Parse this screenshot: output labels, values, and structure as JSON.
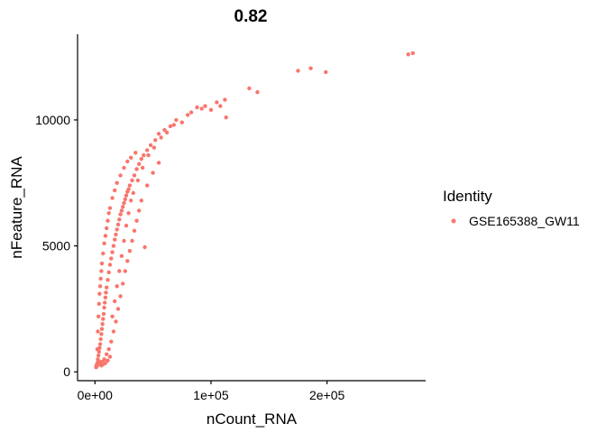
{
  "chart_data": {
    "type": "scatter",
    "title": "0.82",
    "xlabel": "nCount_RNA",
    "ylabel": "nFeature_RNA",
    "xlim": [
      -15000,
      285000
    ],
    "ylim": [
      -350,
      13400
    ],
    "x_ticks": [
      {
        "value": 0,
        "label": "0e+00"
      },
      {
        "value": 100000,
        "label": "1e+05"
      },
      {
        "value": 200000,
        "label": "2e+05"
      }
    ],
    "y_ticks": [
      {
        "value": 0,
        "label": "0"
      },
      {
        "value": 5000,
        "label": "5000"
      },
      {
        "value": 10000,
        "label": "10000"
      }
    ],
    "grid": false,
    "legend": {
      "title": "Identity",
      "position": "right",
      "entries": [
        {
          "label": "GSE165388_GW11",
          "color": "#F8766D"
        }
      ]
    },
    "series": [
      {
        "name": "GSE165388_GW11",
        "color": "#F8766D",
        "points": [
          [
            1500,
            200
          ],
          [
            2000,
            350
          ],
          [
            2500,
            500
          ],
          [
            3000,
            650
          ],
          [
            3500,
            800
          ],
          [
            4000,
            950
          ],
          [
            4500,
            1100
          ],
          [
            5000,
            1300
          ],
          [
            5500,
            1500
          ],
          [
            6000,
            1700
          ],
          [
            6500,
            1900
          ],
          [
            7000,
            2100
          ],
          [
            7500,
            2300
          ],
          [
            8000,
            2550
          ],
          [
            8500,
            2750
          ],
          [
            9000,
            2950
          ],
          [
            9500,
            3150
          ],
          [
            10000,
            3350
          ],
          [
            11000,
            3650
          ],
          [
            12000,
            3950
          ],
          [
            13000,
            4250
          ],
          [
            14000,
            4500
          ],
          [
            15000,
            4750
          ],
          [
            16000,
            5000
          ],
          [
            17000,
            5250
          ],
          [
            18000,
            5450
          ],
          [
            19000,
            5650
          ],
          [
            20000,
            5850
          ],
          [
            21000,
            6050
          ],
          [
            22000,
            6250
          ],
          [
            23000,
            6400
          ],
          [
            24000,
            6550
          ],
          [
            25000,
            6700
          ],
          [
            26000,
            6850
          ],
          [
            27000,
            7000
          ],
          [
            28000,
            7150
          ],
          [
            29000,
            7250
          ],
          [
            30000,
            7400
          ],
          [
            32000,
            7600
          ],
          [
            34000,
            7800
          ],
          [
            36000,
            8050
          ],
          [
            38000,
            8250
          ],
          [
            40000,
            8450
          ],
          [
            42000,
            8600
          ],
          [
            45000,
            8800
          ],
          [
            48000,
            9000
          ],
          [
            52000,
            9200
          ],
          [
            55000,
            9450
          ],
          [
            60000,
            9600
          ],
          [
            65000,
            9750
          ],
          [
            70000,
            10000
          ],
          [
            80000,
            10200
          ],
          [
            88000,
            10500
          ],
          [
            95000,
            10550
          ],
          [
            100000,
            10400
          ],
          [
            105000,
            10700
          ],
          [
            108000,
            10550
          ],
          [
            112000,
            10800
          ],
          [
            113000,
            10100
          ],
          [
            133000,
            11250
          ],
          [
            140000,
            11100
          ],
          [
            175000,
            11950
          ],
          [
            186000,
            12050
          ],
          [
            199000,
            11900
          ],
          [
            270000,
            12600
          ],
          [
            274000,
            12650
          ],
          [
            2000,
            900
          ],
          [
            2500,
            1600
          ],
          [
            3000,
            2200
          ],
          [
            3500,
            2700
          ],
          [
            4000,
            3100
          ],
          [
            4500,
            3400
          ],
          [
            5000,
            3700
          ],
          [
            5500,
            4000
          ],
          [
            6000,
            4300
          ],
          [
            7000,
            4700
          ],
          [
            8000,
            5100
          ],
          [
            9000,
            5400
          ],
          [
            10000,
            5700
          ],
          [
            11000,
            6000
          ],
          [
            12000,
            6300
          ],
          [
            13000,
            6500
          ],
          [
            15000,
            6900
          ],
          [
            17000,
            7200
          ],
          [
            19000,
            7500
          ],
          [
            22000,
            7800
          ],
          [
            25000,
            8100
          ],
          [
            28000,
            8350
          ],
          [
            31000,
            8500
          ],
          [
            35000,
            8700
          ],
          [
            4000,
            300
          ],
          [
            6000,
            400
          ],
          [
            8000,
            500
          ],
          [
            10000,
            700
          ],
          [
            12000,
            900
          ],
          [
            14000,
            1200
          ],
          [
            16000,
            1600
          ],
          [
            18000,
            2000
          ],
          [
            20000,
            2500
          ],
          [
            22000,
            3000
          ],
          [
            24000,
            3500
          ],
          [
            26000,
            4000
          ],
          [
            28000,
            4400
          ],
          [
            30000,
            4800
          ],
          [
            32000,
            5200
          ],
          [
            34000,
            5600
          ],
          [
            36000,
            6000
          ],
          [
            38000,
            6400
          ],
          [
            40000,
            6800
          ],
          [
            45000,
            7400
          ],
          [
            50000,
            7900
          ],
          [
            55000,
            8300
          ],
          [
            43000,
            4950
          ],
          [
            3500,
            400
          ],
          [
            5500,
            250
          ],
          [
            7000,
            300
          ],
          [
            9000,
            350
          ],
          [
            11000,
            450
          ],
          [
            13000,
            600
          ],
          [
            3000,
            300
          ],
          [
            1000,
            180
          ],
          [
            1200,
            250
          ],
          [
            1800,
            280
          ],
          [
            2200,
            320
          ],
          [
            2800,
            420
          ],
          [
            15000,
            2200
          ],
          [
            17000,
            2800
          ],
          [
            19000,
            3400
          ],
          [
            21000,
            4000
          ],
          [
            23000,
            4600
          ],
          [
            25000,
            5200
          ],
          [
            27000,
            5800
          ],
          [
            29000,
            6300
          ],
          [
            31000,
            6800
          ],
          [
            33000,
            7100
          ],
          [
            37000,
            7600
          ],
          [
            41000,
            8100
          ],
          [
            46000,
            8600
          ],
          [
            51000,
            8900
          ],
          [
            57000,
            9300
          ],
          [
            62000,
            9500
          ],
          [
            68000,
            9800
          ],
          [
            75000,
            9900
          ],
          [
            83000,
            10300
          ],
          [
            92000,
            10450
          ]
        ]
      }
    ]
  }
}
